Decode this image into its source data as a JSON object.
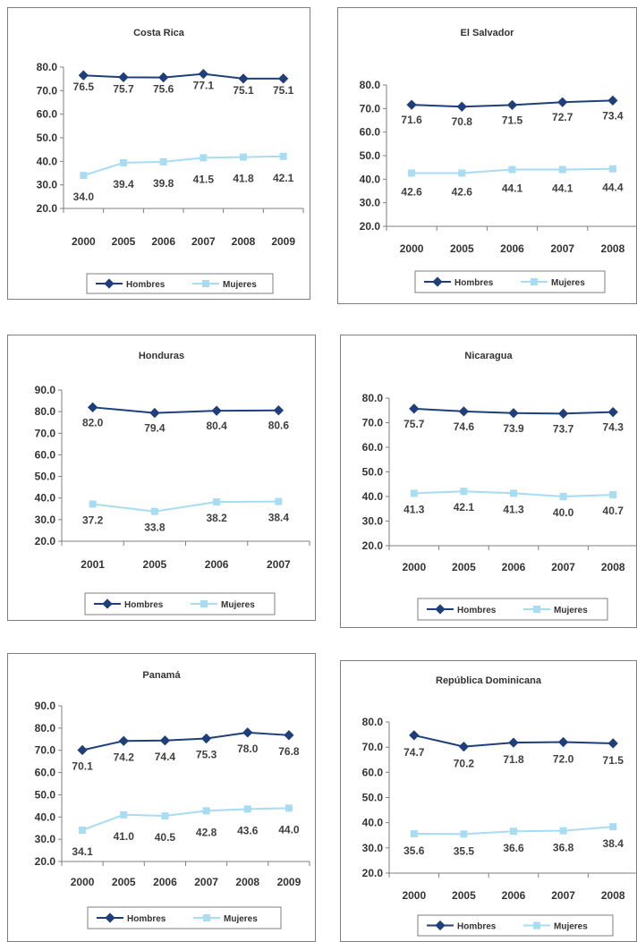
{
  "colors": {
    "hombres": "#1f3f7a",
    "mujeres": "#a8dcf2",
    "axis": "#7f7f7f",
    "frame": "#7f7f7f"
  },
  "chart_data": [
    {
      "type": "line",
      "title": "Costa Rica",
      "categories": [
        "2000",
        "2005",
        "2006",
        "2007",
        "2008",
        "2009"
      ],
      "ylim": [
        20,
        80
      ],
      "yticks": [
        "20.0",
        "30.0",
        "40.0",
        "50.0",
        "60.0",
        "70.0",
        "80.0"
      ],
      "grid": false,
      "legend": "bottom",
      "series": [
        {
          "name": "Hombres",
          "values": [
            76.5,
            75.7,
            75.6,
            77.1,
            75.1,
            75.1
          ],
          "labels": [
            "76.5",
            "75.7",
            "75.6",
            "77.1",
            "75.1",
            "75.1"
          ]
        },
        {
          "name": "Mujeres",
          "values": [
            34.0,
            39.4,
            39.8,
            41.5,
            41.8,
            42.1
          ],
          "labels": [
            "34.0",
            "39.4",
            "39.8",
            "41.5",
            "41.8",
            "42.1"
          ]
        }
      ]
    },
    {
      "type": "line",
      "title": "El Salvador",
      "categories": [
        "2000",
        "2005",
        "2006",
        "2007",
        "2008"
      ],
      "ylim": [
        20,
        80
      ],
      "yticks": [
        "20.0",
        "30.0",
        "40.0",
        "50.0",
        "60.0",
        "70.0",
        "80.0"
      ],
      "grid": false,
      "legend": "bottom",
      "series": [
        {
          "name": "Hombres",
          "values": [
            71.6,
            70.8,
            71.5,
            72.7,
            73.4
          ],
          "labels": [
            "71.6",
            "70.8",
            "71.5",
            "72.7",
            "73.4"
          ]
        },
        {
          "name": "Mujeres",
          "values": [
            42.6,
            42.6,
            44.1,
            44.1,
            44.4
          ],
          "labels": [
            "42.6",
            "42.6",
            "44.1",
            "44.1",
            "44.4"
          ]
        }
      ]
    },
    {
      "type": "line",
      "title": "Honduras",
      "categories": [
        "2001",
        "2005",
        "2006",
        "2007"
      ],
      "ylim": [
        20,
        90
      ],
      "yticks": [
        "20.0",
        "30.0",
        "40.0",
        "50.0",
        "60.0",
        "70.0",
        "80.0",
        "90.0"
      ],
      "grid": false,
      "legend": "bottom",
      "series": [
        {
          "name": "Hombres",
          "values": [
            82.0,
            79.4,
            80.4,
            80.6
          ],
          "labels": [
            "82.0",
            "79.4",
            "80.4",
            "80.6"
          ]
        },
        {
          "name": "Mujeres",
          "values": [
            37.2,
            33.8,
            38.2,
            38.4
          ],
          "labels": [
            "37.2",
            "33.8",
            "38.2",
            "38.4"
          ]
        }
      ]
    },
    {
      "type": "line",
      "title": "Nicaragua",
      "categories": [
        "2000",
        "2005",
        "2006",
        "2007",
        "2008"
      ],
      "ylim": [
        20,
        80
      ],
      "yticks": [
        "20.0",
        "30.0",
        "40.0",
        "50.0",
        "60.0",
        "70.0",
        "80.0"
      ],
      "grid": false,
      "legend": "bottom",
      "series": [
        {
          "name": "Hombres",
          "values": [
            75.7,
            74.6,
            73.9,
            73.7,
            74.3
          ],
          "labels": [
            "75.7",
            "74.6",
            "73.9",
            "73.7",
            "74.3"
          ]
        },
        {
          "name": "Mujeres",
          "values": [
            41.3,
            42.1,
            41.3,
            40.0,
            40.7
          ],
          "labels": [
            "41.3",
            "42.1",
            "41.3",
            "40.0",
            "40.7"
          ]
        }
      ]
    },
    {
      "type": "line",
      "title": "Panamá",
      "categories": [
        "2000",
        "2005",
        "2006",
        "2007",
        "2008",
        "2009"
      ],
      "ylim": [
        20,
        90
      ],
      "yticks": [
        "20.0",
        "30.0",
        "40.0",
        "50.0",
        "60.0",
        "70.0",
        "80.0",
        "90.0"
      ],
      "grid": false,
      "legend": "bottom",
      "series": [
        {
          "name": "Hombres",
          "values": [
            70.1,
            74.2,
            74.4,
            75.3,
            78.0,
            76.8
          ],
          "labels": [
            "70.1",
            "74.2",
            "74.4",
            "75.3",
            "78.0",
            "76.8"
          ]
        },
        {
          "name": "Mujeres",
          "values": [
            34.1,
            41.0,
            40.5,
            42.8,
            43.6,
            44.0
          ],
          "labels": [
            "34.1",
            "41.0",
            "40.5",
            "42.8",
            "43.6",
            "44.0"
          ]
        }
      ]
    },
    {
      "type": "line",
      "title": "República Dominicana",
      "categories": [
        "2000",
        "2005",
        "2006",
        "2007",
        "2008"
      ],
      "ylim": [
        20,
        80
      ],
      "yticks": [
        "20.0",
        "30.0",
        "40.0",
        "50.0",
        "60.0",
        "70.0",
        "80.0"
      ],
      "grid": false,
      "legend": "bottom",
      "series": [
        {
          "name": "Hombres",
          "values": [
            74.7,
            70.2,
            71.8,
            72.0,
            71.5
          ],
          "labels": [
            "74.7",
            "70.2",
            "71.8",
            "72.0",
            "71.5"
          ]
        },
        {
          "name": "Mujeres",
          "values": [
            35.6,
            35.5,
            36.6,
            36.8,
            38.4
          ],
          "labels": [
            "35.6",
            "35.5",
            "36.6",
            "36.8",
            "38.4"
          ]
        }
      ]
    }
  ]
}
